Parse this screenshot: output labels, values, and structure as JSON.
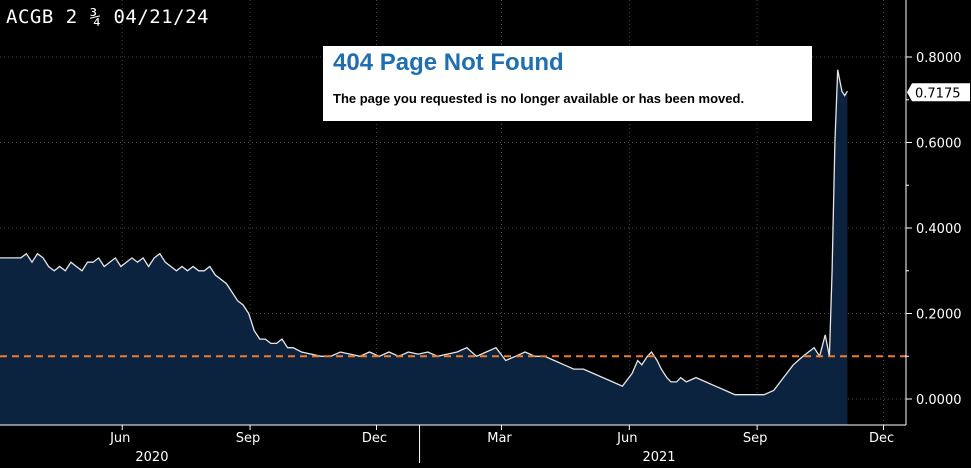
{
  "chart_data": {
    "type": "area",
    "title": "ACGB 2 ¾ 04/21/24",
    "x_ticks": [
      "Jun",
      "Sep",
      "Dec",
      "Mar",
      "Jun",
      "Sep",
      "Dec"
    ],
    "year_labels": [
      "2020",
      "2021"
    ],
    "y_ticks": [
      "0.8000",
      "0.6000",
      "0.4000",
      "0.2000",
      "0.0000"
    ],
    "ylim": [
      0,
      0.8
    ],
    "last_value_label": "0.7175",
    "reference_line": {
      "value": 0.1,
      "style": "dashed",
      "color": "#f07b2a"
    },
    "grid": true,
    "series": [
      {
        "x": [
          "2020-03-20",
          "2020-03-24",
          "2020-03-28",
          "2020-04-01",
          "2020-04-05",
          "2020-04-09",
          "2020-04-13",
          "2020-04-17",
          "2020-04-21",
          "2020-04-25",
          "2020-04-29",
          "2020-05-03",
          "2020-05-07",
          "2020-05-11",
          "2020-05-15",
          "2020-05-19",
          "2020-05-23",
          "2020-05-27",
          "2020-05-31",
          "2020-06-04",
          "2020-06-08",
          "2020-06-12",
          "2020-06-16",
          "2020-06-20",
          "2020-06-24",
          "2020-06-28",
          "2020-07-02",
          "2020-07-06",
          "2020-07-10",
          "2020-07-14",
          "2020-07-18",
          "2020-07-22",
          "2020-07-26",
          "2020-07-30",
          "2020-08-03",
          "2020-08-07",
          "2020-08-11",
          "2020-08-15",
          "2020-08-19",
          "2020-08-23",
          "2020-08-27",
          "2020-08-31",
          "2020-09-04",
          "2020-09-08",
          "2020-09-12",
          "2020-09-16",
          "2020-09-20",
          "2020-09-24",
          "2020-09-28",
          "2020-10-02",
          "2020-10-08",
          "2020-10-15",
          "2020-10-22",
          "2020-10-29",
          "2020-11-05",
          "2020-11-12",
          "2020-11-19",
          "2020-11-26",
          "2020-12-03",
          "2020-12-10",
          "2020-12-17",
          "2020-12-24",
          "2020-12-31",
          "2021-01-07",
          "2021-01-14",
          "2021-01-21",
          "2021-01-28",
          "2021-02-04",
          "2021-02-11",
          "2021-02-18",
          "2021-02-25",
          "2021-03-04",
          "2021-03-11",
          "2021-03-18",
          "2021-03-25",
          "2021-04-01",
          "2021-04-08",
          "2021-04-15",
          "2021-04-22",
          "2021-04-29",
          "2021-05-06",
          "2021-05-13",
          "2021-05-20",
          "2021-05-27",
          "2021-06-03",
          "2021-06-07",
          "2021-06-10",
          "2021-06-14",
          "2021-06-17",
          "2021-06-21",
          "2021-06-24",
          "2021-06-28",
          "2021-07-01",
          "2021-07-05",
          "2021-07-08",
          "2021-07-12",
          "2021-07-19",
          "2021-07-26",
          "2021-08-02",
          "2021-08-09",
          "2021-08-16",
          "2021-08-23",
          "2021-08-30",
          "2021-09-06",
          "2021-09-13",
          "2021-09-20",
          "2021-09-27",
          "2021-10-04",
          "2021-10-08",
          "2021-10-12",
          "2021-10-16",
          "2021-10-20",
          "2021-10-23",
          "2021-10-25",
          "2021-10-27",
          "2021-10-29",
          "2021-11-01",
          "2021-11-03",
          "2021-11-05"
        ],
        "values": [
          0.33,
          0.34,
          0.32,
          0.34,
          0.33,
          0.31,
          0.3,
          0.31,
          0.3,
          0.32,
          0.31,
          0.3,
          0.32,
          0.32,
          0.33,
          0.31,
          0.32,
          0.33,
          0.31,
          0.32,
          0.33,
          0.32,
          0.33,
          0.31,
          0.33,
          0.34,
          0.32,
          0.31,
          0.3,
          0.31,
          0.3,
          0.31,
          0.3,
          0.3,
          0.31,
          0.29,
          0.28,
          0.27,
          0.25,
          0.23,
          0.22,
          0.2,
          0.16,
          0.14,
          0.14,
          0.13,
          0.13,
          0.14,
          0.12,
          0.12,
          0.11,
          0.105,
          0.1,
          0.1,
          0.11,
          0.105,
          0.1,
          0.11,
          0.1,
          0.11,
          0.1,
          0.11,
          0.105,
          0.11,
          0.1,
          0.105,
          0.11,
          0.12,
          0.1,
          0.11,
          0.12,
          0.09,
          0.1,
          0.11,
          0.1,
          0.1,
          0.09,
          0.08,
          0.07,
          0.07,
          0.06,
          0.05,
          0.04,
          0.03,
          0.06,
          0.09,
          0.08,
          0.1,
          0.11,
          0.09,
          0.07,
          0.05,
          0.04,
          0.04,
          0.05,
          0.04,
          0.05,
          0.04,
          0.03,
          0.02,
          0.01,
          0.01,
          0.01,
          0.01,
          0.02,
          0.05,
          0.08,
          0.1,
          0.11,
          0.12,
          0.1,
          0.15,
          0.1,
          0.3,
          0.6,
          0.77,
          0.72,
          0.71,
          0.72
        ]
      }
    ]
  },
  "error_box": {
    "title": "404 Page Not Found",
    "message": "The page you requested is no longer available or has been moved."
  },
  "colors": {
    "background": "#000000",
    "area_fill": "#0c2340",
    "line": "#e6e6e6",
    "grid": "#4a4a4a",
    "axis_text": "#ffffff"
  }
}
